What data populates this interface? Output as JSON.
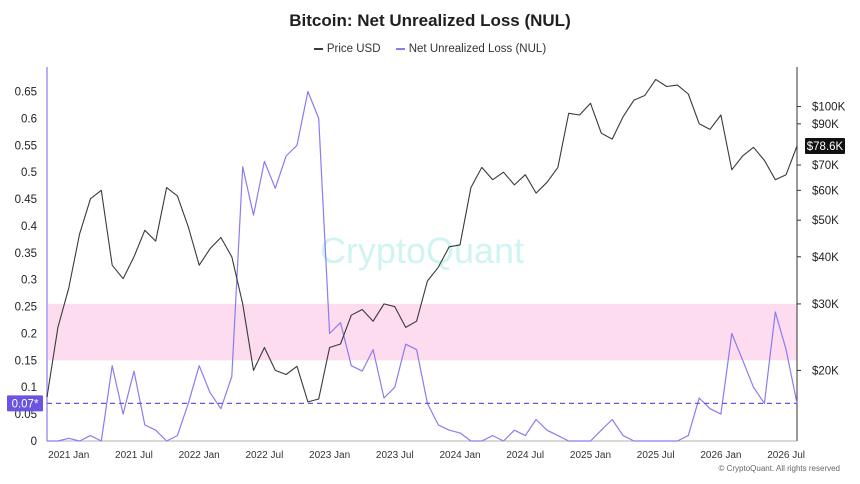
{
  "chart_data": {
    "type": "line",
    "title": "Bitcoin: Net Unrealized Loss (NUL)",
    "watermark": "CryptoQuant",
    "copyright": "© CryptoQuant. All rights reserved",
    "legend_placement": "top-center",
    "series": [
      {
        "name": "Price USD",
        "color": "#3a3a3a",
        "axis": "right",
        "x": [
          "2020-11",
          "2020-12",
          "2021-01",
          "2021-02",
          "2021-03",
          "2021-04",
          "2021-05",
          "2021-06",
          "2021-07",
          "2021-08",
          "2021-09",
          "2021-10",
          "2021-11",
          "2021-12",
          "2022-01",
          "2022-02",
          "2022-03",
          "2022-04",
          "2022-05",
          "2022-06",
          "2022-07",
          "2022-08",
          "2022-09",
          "2022-10",
          "2022-11",
          "2022-12",
          "2023-01",
          "2023-02",
          "2023-03",
          "2023-04",
          "2023-05",
          "2023-06",
          "2023-07",
          "2023-08",
          "2023-09",
          "2023-10",
          "2023-11",
          "2023-12",
          "2024-01",
          "2024-02",
          "2024-03",
          "2024-04",
          "2024-05",
          "2024-06",
          "2024-07",
          "2024-08",
          "2024-09",
          "2024-10",
          "2024-11",
          "2024-12",
          "2025-01",
          "2025-02",
          "2025-03",
          "2025-04",
          "2025-05",
          "2025-06",
          "2025-07",
          "2025-08",
          "2025-09",
          "2025-10",
          "2025-11",
          "2025-12",
          "2026-01",
          "2026-02",
          "2026-03",
          "2026-04",
          "2026-05",
          "2026-06",
          "2026-07",
          "2026-08"
        ],
        "values": [
          17000,
          26000,
          33000,
          46000,
          57000,
          60000,
          38000,
          35000,
          40000,
          47000,
          44000,
          61000,
          58000,
          48000,
          38000,
          42000,
          45000,
          40000,
          30000,
          20000,
          23000,
          20000,
          19500,
          20500,
          16500,
          16800,
          23000,
          23500,
          28000,
          29000,
          27000,
          30000,
          29500,
          26000,
          27000,
          34500,
          37500,
          42500,
          43000,
          61000,
          69000,
          64000,
          67000,
          62000,
          66000,
          59000,
          63000,
          69000,
          96000,
          95000,
          102000,
          85000,
          82000,
          94000,
          104000,
          107000,
          118000,
          113000,
          114000,
          108000,
          90000,
          87000,
          95000,
          68000,
          74000,
          78000,
          72000,
          64000,
          66000,
          78600
        ]
      },
      {
        "name": "Net Unrealized Loss (NUL)",
        "color": "#8b7cf0",
        "axis": "left",
        "x": [
          "2020-11",
          "2020-12",
          "2021-01",
          "2021-02",
          "2021-03",
          "2021-04",
          "2021-05",
          "2021-06",
          "2021-07",
          "2021-08",
          "2021-09",
          "2021-10",
          "2021-11",
          "2021-12",
          "2022-01",
          "2022-02",
          "2022-03",
          "2022-04",
          "2022-05",
          "2022-06",
          "2022-07",
          "2022-08",
          "2022-09",
          "2022-10",
          "2022-11",
          "2022-12",
          "2023-01",
          "2023-02",
          "2023-03",
          "2023-04",
          "2023-05",
          "2023-06",
          "2023-07",
          "2023-08",
          "2023-09",
          "2023-10",
          "2023-11",
          "2023-12",
          "2024-01",
          "2024-02",
          "2024-03",
          "2024-04",
          "2024-05",
          "2024-06",
          "2024-07",
          "2024-08",
          "2024-09",
          "2024-10",
          "2024-11",
          "2024-12",
          "2025-01",
          "2025-02",
          "2025-03",
          "2025-04",
          "2025-05",
          "2025-06",
          "2025-07",
          "2025-08",
          "2025-09",
          "2025-10",
          "2025-11",
          "2025-12",
          "2026-01",
          "2026-02",
          "2026-03",
          "2026-04",
          "2026-05",
          "2026-06",
          "2026-07",
          "2026-08"
        ],
        "values": [
          0.0,
          0.0,
          0.005,
          0.0,
          0.01,
          0.0,
          0.14,
          0.05,
          0.13,
          0.03,
          0.02,
          0.0,
          0.01,
          0.07,
          0.14,
          0.09,
          0.06,
          0.12,
          0.51,
          0.42,
          0.52,
          0.47,
          0.53,
          0.55,
          0.65,
          0.6,
          0.2,
          0.22,
          0.14,
          0.13,
          0.17,
          0.08,
          0.1,
          0.18,
          0.17,
          0.07,
          0.03,
          0.02,
          0.015,
          0.0,
          0.0,
          0.01,
          0.0,
          0.02,
          0.01,
          0.04,
          0.02,
          0.01,
          0.0,
          0.0,
          0.0,
          0.02,
          0.04,
          0.01,
          0.0,
          0.0,
          0.0,
          0.0,
          0.0,
          0.01,
          0.08,
          0.06,
          0.05,
          0.2,
          0.15,
          0.1,
          0.07,
          0.24,
          0.17,
          0.07
        ]
      }
    ],
    "y_left": {
      "ticks": [
        0,
        0.05,
        0.1,
        0.15,
        0.2,
        0.25,
        0.3,
        0.35,
        0.4,
        0.45,
        0.5,
        0.55,
        0.6,
        0.65
      ],
      "tick_labels": [
        "0",
        "0.05",
        "0.1",
        "0.15",
        "0.2",
        "0.25",
        "0.3",
        "0.35",
        "0.4",
        "0.45",
        "0.5",
        "0.55",
        "0.6",
        "0.65"
      ],
      "range": [
        0,
        0.69
      ]
    },
    "y_right": {
      "scale": "log",
      "ticks": [
        20000,
        30000,
        40000,
        50000,
        60000,
        70000,
        90000,
        100000
      ],
      "tick_labels": [
        "$20K",
        "$30K",
        "$40K",
        "$50K",
        "$60K",
        "$70K",
        "$90K",
        "$100K"
      ],
      "range": [
        13000,
        125000
      ]
    },
    "x_axis": {
      "range": [
        "2020-11",
        "2026-08"
      ],
      "ticks": [
        "2021-01",
        "2021-07",
        "2022-01",
        "2022-07",
        "2023-01",
        "2023-07",
        "2024-01",
        "2024-07",
        "2025-01",
        "2025-07",
        "2026-01",
        "2026-07"
      ],
      "tick_labels": [
        "2021 Jan",
        "2021 Jul",
        "2022 Jan",
        "2022 Jul",
        "2023 Jan",
        "2023 Jul",
        "2024 Jan",
        "2024 Jul",
        "2025 Jan",
        "2025 Jul",
        "2026 Jan",
        "2026 Jul"
      ]
    },
    "band": {
      "from": 0.15,
      "to": 0.255,
      "color": "#fbd3ea"
    },
    "reference_line": {
      "value": 0.07,
      "label": "0.07*",
      "color": "#6a55e0"
    },
    "current_price_label": "$78.6K"
  }
}
